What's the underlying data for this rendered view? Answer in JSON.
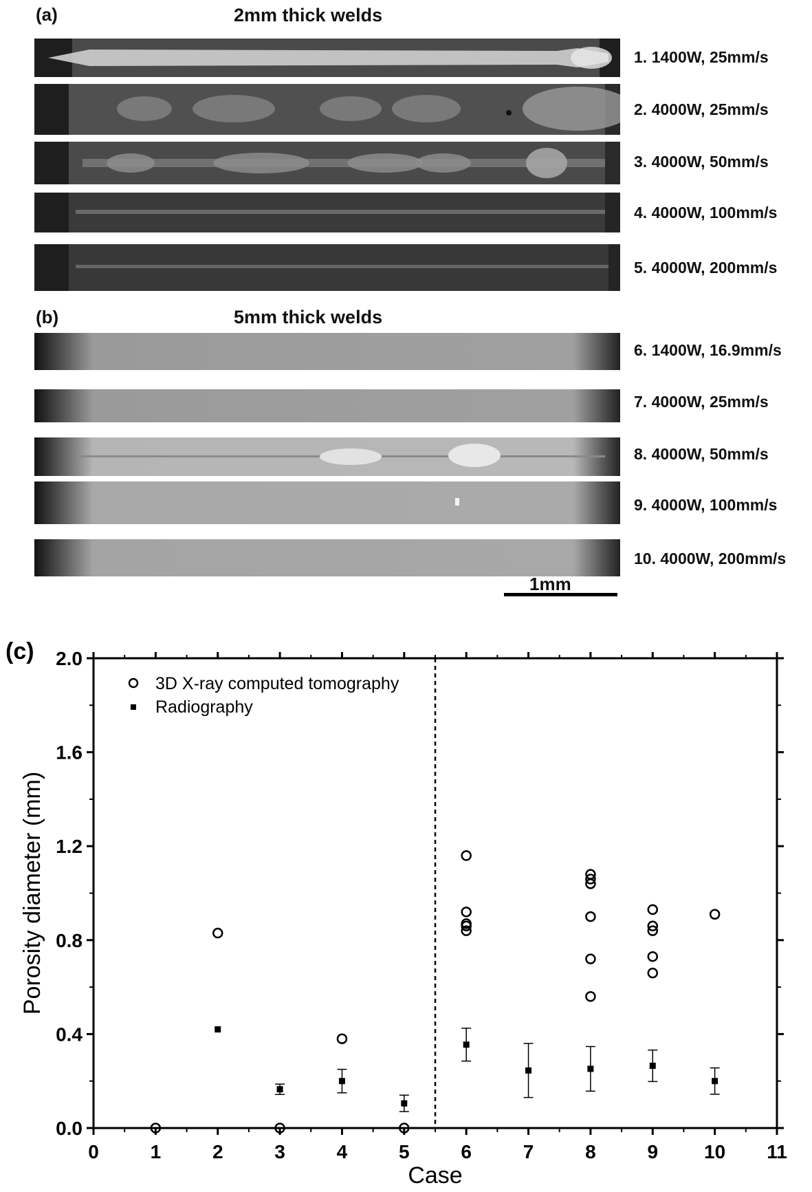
{
  "panel_a": {
    "label": "(a)",
    "title": "2mm thick welds",
    "welds": [
      {
        "label": "1. 1400W,  25mm/s"
      },
      {
        "label": "2. 4000W,  25mm/s"
      },
      {
        "label": "3. 4000W,  50mm/s"
      },
      {
        "label": "4. 4000W,  100mm/s"
      },
      {
        "label": "5. 4000W,  200mm/s"
      }
    ]
  },
  "panel_b": {
    "label": "(b)",
    "title": "5mm thick welds",
    "welds": [
      {
        "label": "6. 1400W,  16.9mm/s"
      },
      {
        "label": "7. 4000W,  25mm/s"
      },
      {
        "label": "8. 4000W,  50mm/s"
      },
      {
        "label": "9. 4000W,  100mm/s"
      },
      {
        "label": "10. 4000W,  200mm/s"
      }
    ],
    "scale_bar_label": "1mm"
  },
  "panel_c": {
    "label": "(c)"
  },
  "chart_data": {
    "type": "scatter",
    "title": "",
    "xlabel": "Case",
    "ylabel": "Porosity diameter (mm)",
    "xlim": [
      0,
      11
    ],
    "ylim": [
      0.0,
      2.0
    ],
    "x_ticks": [
      "0",
      "1",
      "2",
      "3",
      "4",
      "5",
      "6",
      "7",
      "8",
      "9",
      "10",
      "11"
    ],
    "y_ticks": [
      "0.0",
      "0.4",
      "0.8",
      "1.2",
      "1.6",
      "2.0"
    ],
    "divider_x": 5.5,
    "legend_position": "top-left",
    "series": [
      {
        "name": "3D X-ray computed tomography",
        "marker": "open-circle",
        "points": [
          {
            "x": 1,
            "y": 0.0
          },
          {
            "x": 2,
            "y": 0.83
          },
          {
            "x": 3,
            "y": 0.0
          },
          {
            "x": 4,
            "y": 0.38
          },
          {
            "x": 5,
            "y": 0.0
          },
          {
            "x": 6,
            "y": 1.16
          },
          {
            "x": 6,
            "y": 0.92
          },
          {
            "x": 6,
            "y": 0.87
          },
          {
            "x": 6,
            "y": 0.86
          },
          {
            "x": 6,
            "y": 0.84
          },
          {
            "x": 8,
            "y": 1.08
          },
          {
            "x": 8,
            "y": 1.06
          },
          {
            "x": 8,
            "y": 1.04
          },
          {
            "x": 8,
            "y": 0.9
          },
          {
            "x": 8,
            "y": 0.72
          },
          {
            "x": 8,
            "y": 0.56
          },
          {
            "x": 9,
            "y": 0.93
          },
          {
            "x": 9,
            "y": 0.86
          },
          {
            "x": 9,
            "y": 0.84
          },
          {
            "x": 9,
            "y": 0.73
          },
          {
            "x": 9,
            "y": 0.66
          },
          {
            "x": 10,
            "y": 0.91
          }
        ]
      },
      {
        "name": "Radiography",
        "marker": "filled-square",
        "points": [
          {
            "x": 2,
            "y": 0.42,
            "err": 0.0
          },
          {
            "x": 3,
            "y": 0.165,
            "err": 0.022
          },
          {
            "x": 4,
            "y": 0.2,
            "err": 0.05
          },
          {
            "x": 5,
            "y": 0.105,
            "err": 0.035
          },
          {
            "x": 6,
            "y": 0.355,
            "err": 0.07
          },
          {
            "x": 7,
            "y": 0.245,
            "err": 0.115
          },
          {
            "x": 8,
            "y": 0.252,
            "err": 0.095
          },
          {
            "x": 9,
            "y": 0.265,
            "err": 0.067
          },
          {
            "x": 10,
            "y": 0.2,
            "err": 0.056
          }
        ]
      }
    ]
  }
}
